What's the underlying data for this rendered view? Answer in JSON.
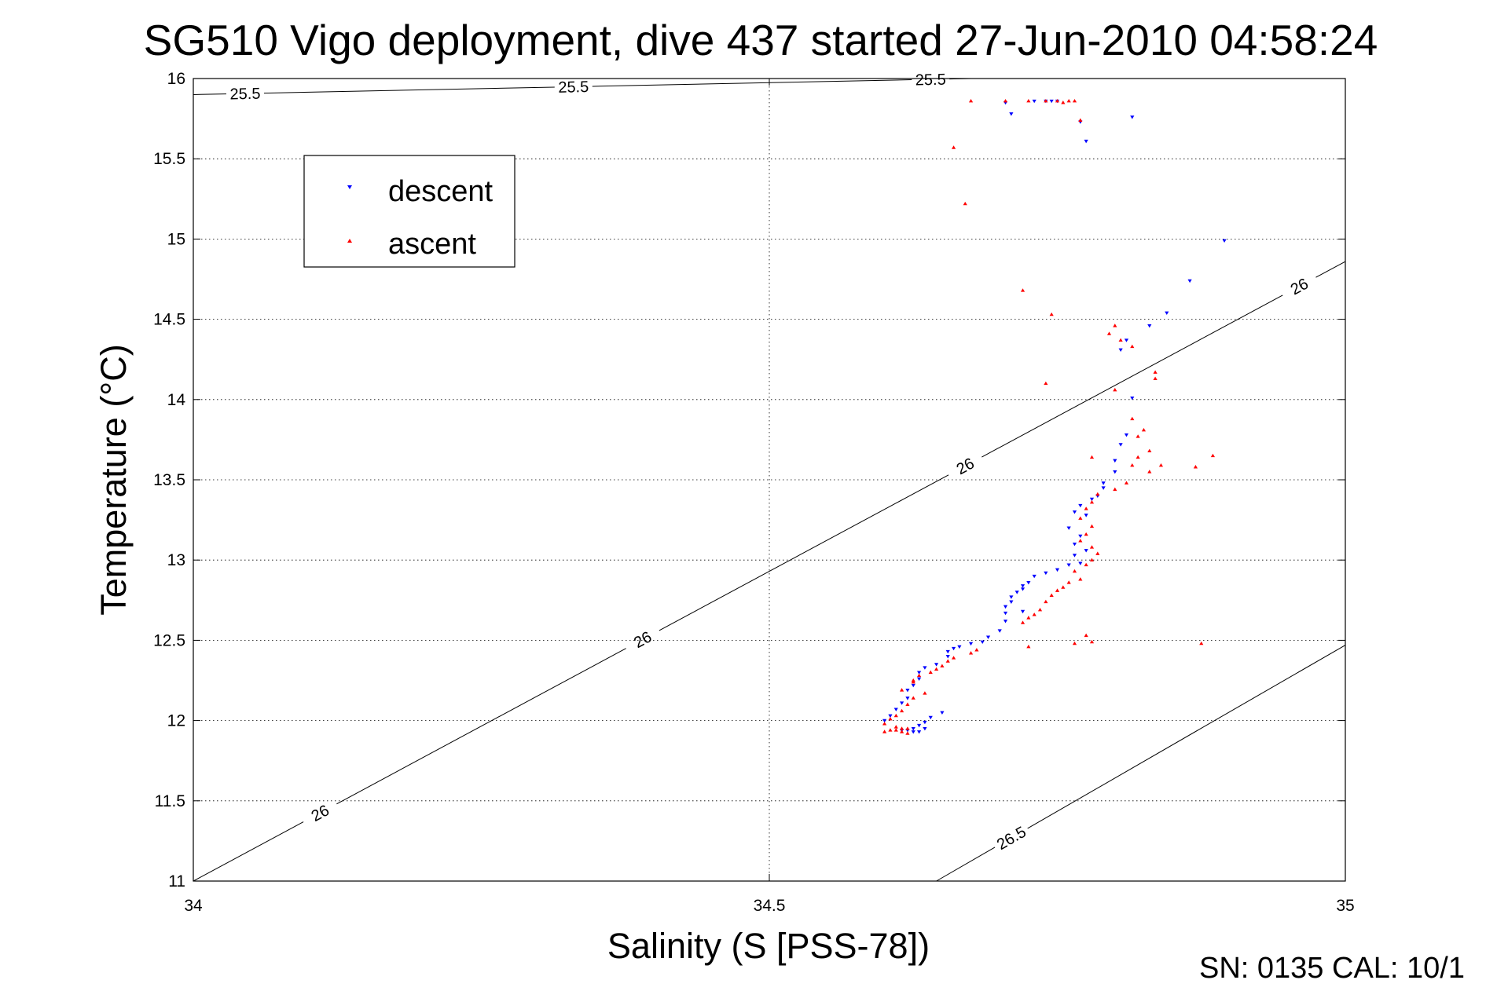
{
  "chart_data": {
    "type": "scatter",
    "title": "SG510 Vigo deployment, dive 437 started 27-Jun-2010 04:58:24",
    "xlabel": "Salinity (S [PSS-78])",
    "ylabel": "Temperature (°C)",
    "xlim": [
      34,
      35
    ],
    "ylim": [
      11,
      16
    ],
    "xticks": [
      "34",
      "34.5",
      "35"
    ],
    "yticks": [
      "11",
      "11.5",
      "12",
      "12.5",
      "13",
      "13.5",
      "14",
      "14.5",
      "15",
      "15.5",
      "16"
    ],
    "grid": "dotted",
    "legend_position": "upper-left",
    "footer": "SN: 0135  CAL: 10/1",
    "contours": [
      {
        "label": "25.5",
        "line": [
          [
            34.0,
            15.9
          ],
          [
            34.675,
            16.0
          ]
        ],
        "labels_at": [
          [
            34.045,
            13.67
          ],
          [
            34.33,
            14.84
          ],
          [
            34.64,
            15.75
          ]
        ]
      },
      {
        "label": "26",
        "line": [
          [
            34.0,
            11.0
          ],
          [
            35.0,
            14.86
          ]
        ],
        "labels_at": [
          [
            34.11,
            11.54
          ],
          [
            34.39,
            12.57
          ],
          [
            34.67,
            13.71
          ],
          [
            34.96,
            14.81
          ]
        ]
      },
      {
        "label": "26.5",
        "line": [
          [
            34.645,
            11.0
          ],
          [
            35.0,
            12.47
          ]
        ],
        "labels_at": [
          [
            34.71,
            11.17
          ]
        ]
      }
    ],
    "series": [
      {
        "name": "descent",
        "color": "#0000ff",
        "marker": "triangle-down",
        "points": [
          [
            34.705,
            15.85
          ],
          [
            34.71,
            15.78
          ],
          [
            34.73,
            15.86
          ],
          [
            34.74,
            15.86
          ],
          [
            34.745,
            15.86
          ],
          [
            34.75,
            15.86
          ],
          [
            34.77,
            15.73
          ],
          [
            34.775,
            15.61
          ],
          [
            34.815,
            15.76
          ],
          [
            34.895,
            14.99
          ],
          [
            34.865,
            14.74
          ],
          [
            34.845,
            14.54
          ],
          [
            34.83,
            14.46
          ],
          [
            34.81,
            14.37
          ],
          [
            34.805,
            14.31
          ],
          [
            34.815,
            14.01
          ],
          [
            34.81,
            13.78
          ],
          [
            34.805,
            13.72
          ],
          [
            34.8,
            13.62
          ],
          [
            34.8,
            13.55
          ],
          [
            34.79,
            13.48
          ],
          [
            34.79,
            13.45
          ],
          [
            34.785,
            13.4
          ],
          [
            34.78,
            13.38
          ],
          [
            34.77,
            13.34
          ],
          [
            34.765,
            13.3
          ],
          [
            34.775,
            13.28
          ],
          [
            34.76,
            13.2
          ],
          [
            34.77,
            13.15
          ],
          [
            34.765,
            13.1
          ],
          [
            34.775,
            13.06
          ],
          [
            34.765,
            13.03
          ],
          [
            34.77,
            12.98
          ],
          [
            34.76,
            12.97
          ],
          [
            34.75,
            12.94
          ],
          [
            34.74,
            12.92
          ],
          [
            34.73,
            12.9
          ],
          [
            34.725,
            12.86
          ],
          [
            34.72,
            12.84
          ],
          [
            34.72,
            12.82
          ],
          [
            34.715,
            12.8
          ],
          [
            34.71,
            12.77
          ],
          [
            34.71,
            12.74
          ],
          [
            34.705,
            12.71
          ],
          [
            34.705,
            12.67
          ],
          [
            34.72,
            12.68
          ],
          [
            34.705,
            12.62
          ],
          [
            34.7,
            12.56
          ],
          [
            34.69,
            12.52
          ],
          [
            34.685,
            12.49
          ],
          [
            34.675,
            12.48
          ],
          [
            34.665,
            12.46
          ],
          [
            34.66,
            12.45
          ],
          [
            34.655,
            12.43
          ],
          [
            34.655,
            12.4
          ],
          [
            34.645,
            12.35
          ],
          [
            34.635,
            12.33
          ],
          [
            34.63,
            12.3
          ],
          [
            34.63,
            12.26
          ],
          [
            34.625,
            12.22
          ],
          [
            34.62,
            12.19
          ],
          [
            34.62,
            12.14
          ],
          [
            34.615,
            12.11
          ],
          [
            34.61,
            12.07
          ],
          [
            34.605,
            12.03
          ],
          [
            34.6,
            12.0
          ],
          [
            34.65,
            12.05
          ],
          [
            34.64,
            12.02
          ],
          [
            34.635,
            11.99
          ],
          [
            34.63,
            11.97
          ],
          [
            34.625,
            11.95
          ],
          [
            34.62,
            11.94
          ],
          [
            34.615,
            11.94
          ],
          [
            34.63,
            11.93
          ],
          [
            34.625,
            11.93
          ],
          [
            34.635,
            11.95
          ]
        ]
      },
      {
        "name": "ascent",
        "color": "#ff0000",
        "marker": "triangle-up",
        "points": [
          [
            34.675,
            15.86
          ],
          [
            34.705,
            15.86
          ],
          [
            34.725,
            15.86
          ],
          [
            34.74,
            15.86
          ],
          [
            34.75,
            15.86
          ],
          [
            34.755,
            15.85
          ],
          [
            34.76,
            15.86
          ],
          [
            34.765,
            15.86
          ],
          [
            34.77,
            15.74
          ],
          [
            34.66,
            15.57
          ],
          [
            34.67,
            15.22
          ],
          [
            34.72,
            14.68
          ],
          [
            34.745,
            14.53
          ],
          [
            34.8,
            14.46
          ],
          [
            34.795,
            14.41
          ],
          [
            34.805,
            14.37
          ],
          [
            34.815,
            14.33
          ],
          [
            34.835,
            14.17
          ],
          [
            34.835,
            14.13
          ],
          [
            34.74,
            14.1
          ],
          [
            34.8,
            14.06
          ],
          [
            34.815,
            13.88
          ],
          [
            34.825,
            13.81
          ],
          [
            34.82,
            13.77
          ],
          [
            34.83,
            13.68
          ],
          [
            34.82,
            13.64
          ],
          [
            34.815,
            13.59
          ],
          [
            34.885,
            13.65
          ],
          [
            34.87,
            13.58
          ],
          [
            34.84,
            13.59
          ],
          [
            34.78,
            13.64
          ],
          [
            34.83,
            13.55
          ],
          [
            34.81,
            13.48
          ],
          [
            34.8,
            13.44
          ],
          [
            34.785,
            13.41
          ],
          [
            34.78,
            13.36
          ],
          [
            34.775,
            13.32
          ],
          [
            34.77,
            13.26
          ],
          [
            34.78,
            13.21
          ],
          [
            34.775,
            13.16
          ],
          [
            34.77,
            13.12
          ],
          [
            34.78,
            13.08
          ],
          [
            34.785,
            13.04
          ],
          [
            34.78,
            13.0
          ],
          [
            34.775,
            12.97
          ],
          [
            34.765,
            12.93
          ],
          [
            34.77,
            12.88
          ],
          [
            34.76,
            12.86
          ],
          [
            34.755,
            12.83
          ],
          [
            34.75,
            12.81
          ],
          [
            34.745,
            12.78
          ],
          [
            34.74,
            12.74
          ],
          [
            34.735,
            12.69
          ],
          [
            34.73,
            12.66
          ],
          [
            34.725,
            12.64
          ],
          [
            34.72,
            12.61
          ],
          [
            34.775,
            12.53
          ],
          [
            34.78,
            12.49
          ],
          [
            34.765,
            12.48
          ],
          [
            34.875,
            12.48
          ],
          [
            34.725,
            12.46
          ],
          [
            34.68,
            12.44
          ],
          [
            34.675,
            12.42
          ],
          [
            34.66,
            12.39
          ],
          [
            34.655,
            12.37
          ],
          [
            34.65,
            12.34
          ],
          [
            34.645,
            12.32
          ],
          [
            34.63,
            12.28
          ],
          [
            34.625,
            12.24
          ],
          [
            34.615,
            12.19
          ],
          [
            34.625,
            12.25
          ],
          [
            34.64,
            12.3
          ],
          [
            34.635,
            12.17
          ],
          [
            34.625,
            12.14
          ],
          [
            34.62,
            12.1
          ],
          [
            34.615,
            12.06
          ],
          [
            34.61,
            12.03
          ],
          [
            34.605,
            12.01
          ],
          [
            34.6,
            11.98
          ],
          [
            34.61,
            11.96
          ],
          [
            34.615,
            11.95
          ],
          [
            34.62,
            11.95
          ],
          [
            34.605,
            11.94
          ],
          [
            34.6,
            11.93
          ],
          [
            34.61,
            11.94
          ],
          [
            34.615,
            11.93
          ],
          [
            34.62,
            11.92
          ]
        ]
      }
    ]
  }
}
